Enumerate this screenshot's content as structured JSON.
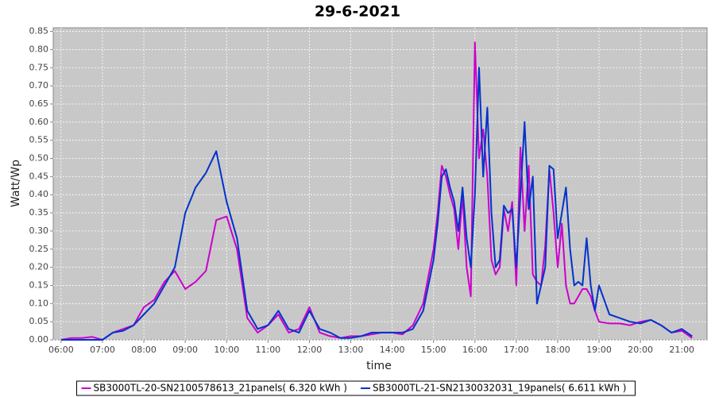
{
  "chart_data": {
    "type": "line",
    "title": "29-6-2021",
    "x_label": "time",
    "y_label": "Watt/Wp",
    "x": [
      6.0,
      6.25,
      6.5,
      6.75,
      7.0,
      7.25,
      7.5,
      7.75,
      8.0,
      8.25,
      8.5,
      8.75,
      9.0,
      9.25,
      9.5,
      9.75,
      10.0,
      10.25,
      10.5,
      10.75,
      11.0,
      11.25,
      11.5,
      11.75,
      12.0,
      12.25,
      12.5,
      12.75,
      13.0,
      13.25,
      13.5,
      13.75,
      14.0,
      14.25,
      14.5,
      14.75,
      15.0,
      15.1,
      15.2,
      15.3,
      15.4,
      15.5,
      15.6,
      15.7,
      15.8,
      15.9,
      16.0,
      16.1,
      16.2,
      16.3,
      16.4,
      16.5,
      16.6,
      16.7,
      16.8,
      16.9,
      17.0,
      17.1,
      17.2,
      17.3,
      17.4,
      17.5,
      17.6,
      17.7,
      17.8,
      17.9,
      18.0,
      18.1,
      18.2,
      18.3,
      18.4,
      18.5,
      18.6,
      18.7,
      18.8,
      18.9,
      19.0,
      19.25,
      19.5,
      19.75,
      20.0,
      20.25,
      20.5,
      20.75,
      21.0,
      21.25
    ],
    "series": [
      {
        "name": "SB3000TL-20-SN2100578613_21panels( 6.320 kWh )",
        "color": "#cc00cc",
        "values": [
          0,
          0.005,
          0.005,
          0.008,
          0,
          0.02,
          0.03,
          0.04,
          0.09,
          0.11,
          0.16,
          0.19,
          0.14,
          0.16,
          0.19,
          0.33,
          0.34,
          0.25,
          0.06,
          0.02,
          0.04,
          0.07,
          0.02,
          0.03,
          0.09,
          0.02,
          0.01,
          0.005,
          0.01,
          0.01,
          0.015,
          0.02,
          0.02,
          0.015,
          0.04,
          0.1,
          0.25,
          0.35,
          0.48,
          0.45,
          0.4,
          0.36,
          0.25,
          0.4,
          0.2,
          0.12,
          0.82,
          0.5,
          0.58,
          0.45,
          0.22,
          0.18,
          0.2,
          0.36,
          0.3,
          0.38,
          0.15,
          0.53,
          0.3,
          0.48,
          0.18,
          0.16,
          0.15,
          0.26,
          0.47,
          0.35,
          0.2,
          0.32,
          0.15,
          0.1,
          0.1,
          0.12,
          0.14,
          0.14,
          0.12,
          0.08,
          0.05,
          0.045,
          0.045,
          0.04,
          0.05,
          0.055,
          0.04,
          0.02,
          0.025,
          0.005
        ]
      },
      {
        "name": "SB3000TL-21-SN2130032031_19panels( 6.611 kWh )",
        "color": "#0033cc",
        "values": [
          0,
          0,
          0,
          0,
          0,
          0.02,
          0.025,
          0.04,
          0.07,
          0.1,
          0.15,
          0.2,
          0.35,
          0.42,
          0.46,
          0.52,
          0.38,
          0.28,
          0.08,
          0.03,
          0.04,
          0.08,
          0.03,
          0.02,
          0.08,
          0.03,
          0.02,
          0.005,
          0.005,
          0.01,
          0.02,
          0.02,
          0.02,
          0.02,
          0.03,
          0.08,
          0.22,
          0.32,
          0.45,
          0.47,
          0.42,
          0.38,
          0.3,
          0.42,
          0.28,
          0.2,
          0.4,
          0.75,
          0.45,
          0.64,
          0.35,
          0.2,
          0.22,
          0.37,
          0.35,
          0.36,
          0.2,
          0.4,
          0.6,
          0.36,
          0.45,
          0.1,
          0.15,
          0.2,
          0.48,
          0.47,
          0.28,
          0.35,
          0.42,
          0.25,
          0.15,
          0.16,
          0.15,
          0.28,
          0.15,
          0.08,
          0.15,
          0.07,
          0.06,
          0.05,
          0.045,
          0.055,
          0.04,
          0.02,
          0.03,
          0.01
        ]
      }
    ],
    "xlim": [
      5.81,
      21.61
    ],
    "xticks": [
      {
        "value": 6,
        "label": "06:00"
      },
      {
        "value": 7,
        "label": "07:00"
      },
      {
        "value": 8,
        "label": "08:00"
      },
      {
        "value": 9,
        "label": "09:00"
      },
      {
        "value": 10,
        "label": "10:00"
      },
      {
        "value": 11,
        "label": "11:00"
      },
      {
        "value": 12,
        "label": "12:00"
      },
      {
        "value": 13,
        "label": "13:00"
      },
      {
        "value": 14,
        "label": "14:00"
      },
      {
        "value": 15,
        "label": "15:00"
      },
      {
        "value": 16,
        "label": "16:00"
      },
      {
        "value": 17,
        "label": "17:00"
      },
      {
        "value": 18,
        "label": "18:00"
      },
      {
        "value": 19,
        "label": "19:00"
      },
      {
        "value": 20,
        "label": "20:00"
      },
      {
        "value": 21,
        "label": "21:00"
      }
    ],
    "ylim": [
      0,
      0.86
    ],
    "yticks": [
      {
        "value": 0,
        "label": "0.00"
      },
      0.05,
      {
        "value": 0.1,
        "label": "0.10"
      },
      0.15,
      {
        "value": 0.2,
        "label": "0.20"
      },
      0.25,
      {
        "value": 0.3,
        "label": "0.30"
      },
      0.35,
      {
        "value": 0.4,
        "label": "0.40"
      },
      0.45,
      {
        "value": 0.5,
        "label": "0.50"
      },
      0.55,
      {
        "value": 0.6,
        "label": "0.60"
      },
      0.65,
      {
        "value": 0.7,
        "label": "0.70"
      },
      0.75,
      {
        "value": 0.8,
        "label": "0.80"
      },
      0.85
    ],
    "grid": true,
    "legend": "bottom"
  }
}
